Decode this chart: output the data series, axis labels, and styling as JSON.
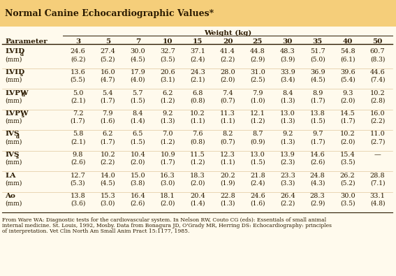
{
  "title": "Normal Canine Echocardiographic Values*",
  "title_bg": "#F5CE7A",
  "table_bg": "#FFFAED",
  "weights": [
    "3",
    "5",
    "7",
    "10",
    "15",
    "20",
    "25",
    "30",
    "35",
    "40",
    "50"
  ],
  "weight_label": "Weight (kg)",
  "parameters": [
    {
      "name": "LVID",
      "subscript": "d",
      "unit": "(mm)",
      "values": [
        "24.6",
        "27.4",
        "30.0",
        "32.7",
        "37.1",
        "41.4",
        "44.8",
        "48.3",
        "51.7",
        "54.8",
        "60.7"
      ],
      "sd": [
        "(6.2)",
        "(5.2)",
        "(4.5)",
        "(3.5)",
        "(2.4)",
        "(2.2)",
        "(2.9)",
        "(3.9)",
        "(5.0)",
        "(6.1)",
        "(8.3)"
      ]
    },
    {
      "name": "LVID",
      "subscript": "s",
      "unit": "(mm)",
      "values": [
        "13.6",
        "16.0",
        "17.9",
        "20.6",
        "24.3",
        "28.0",
        "31.0",
        "33.9",
        "36.9",
        "39.6",
        "44.6"
      ],
      "sd": [
        "(5.5)",
        "(4.7)",
        "(4.0)",
        "(3.1)",
        "(2.1)",
        "(2.0)",
        "(2.5)",
        "(3.4)",
        "(4.5)",
        "(5.4)",
        "(7.4)"
      ]
    },
    {
      "name": "LVPW",
      "subscript": "d",
      "unit": "(mm)",
      "values": [
        "5.0",
        "5.4",
        "5.7",
        "6.2",
        "6.8",
        "7.4",
        "7.9",
        "8.4",
        "8.9",
        "9.3",
        "10.2"
      ],
      "sd": [
        "(2.1)",
        "(1.7)",
        "(1.5)",
        "(1.2)",
        "(0.8)",
        "(0.7)",
        "(1.0)",
        "(1.3)",
        "(1.7)",
        "(2.0)",
        "(2.8)"
      ]
    },
    {
      "name": "LVPW",
      "subscript": "s",
      "unit": "(mm)",
      "values": [
        "7.2",
        "7.9",
        "8.4",
        "9.2",
        "10.2",
        "11.3",
        "12.1",
        "13.0",
        "13.8",
        "14.5",
        "16.0"
      ],
      "sd": [
        "(1.7)",
        "(1.6)",
        "(1.4)",
        "(1.3)",
        "(1.1)",
        "(1.1)",
        "(1.2)",
        "(1.3)",
        "(1.5)",
        "(1.7)",
        "(2.2)"
      ]
    },
    {
      "name": "IVS",
      "subscript": "d",
      "unit": "(mm)",
      "values": [
        "5.8",
        "6.2",
        "6.5",
        "7.0",
        "7.6",
        "8.2",
        "8.7",
        "9.2",
        "9.7",
        "10.2",
        "11.0"
      ],
      "sd": [
        "(2.1)",
        "(1.7)",
        "(1.5)",
        "(1.2)",
        "(0.8)",
        "(0.7)",
        "(0.9)",
        "(1.3)",
        "(1.7)",
        "(2.0)",
        "(2.7)"
      ]
    },
    {
      "name": "IVS",
      "subscript": "s",
      "unit": "(mm)",
      "values": [
        "9.8",
        "10.2",
        "10.4",
        "10.9",
        "11.5",
        "12.3",
        "13.0",
        "13.9",
        "14.6",
        "15.4",
        "—"
      ],
      "sd": [
        "(2.6)",
        "(2.2)",
        "(2.0)",
        "(1.7)",
        "(1.2)",
        "(1.1)",
        "(1.5)",
        "(2.3)",
        "(2.6)",
        "(3.5)",
        ""
      ]
    },
    {
      "name": "LA",
      "subscript": "",
      "unit": "(mm)",
      "values": [
        "12.7",
        "14.0",
        "15.0",
        "16.3",
        "18.3",
        "20.2",
        "21.8",
        "23.3",
        "24.8",
        "26.2",
        "28.8"
      ],
      "sd": [
        "(5.3)",
        "(4.5)",
        "(3.8)",
        "(3.0)",
        "(2.0)",
        "(1.9)",
        "(2.4)",
        "(3.3)",
        "(4.3)",
        "(5.2)",
        "(7.1)"
      ]
    },
    {
      "name": "Ao",
      "subscript": "",
      "unit": "(mm)",
      "values": [
        "13.8",
        "15.3",
        "16.4",
        "18.1",
        "20.4",
        "22.8",
        "24.6",
        "26.4",
        "28.3",
        "30.0",
        "33.1"
      ],
      "sd": [
        "(3.6)",
        "(3.0)",
        "(2.6)",
        "(2.0)",
        "(1.4)",
        "(1.3)",
        "(1.6)",
        "(2.2)",
        "(2.9)",
        "(3.5)",
        "(4.8)"
      ]
    }
  ],
  "footnote": "From Ware WA: Diagnostic tests for the cardiovascular system. In Nelson RW, Couto CG (eds): Essentials of small animal internal medicine. St. Louis, 1992, Mosby. Data from Bonagura JD, O'Grady MR, Herring DS: Echocardiography: principles of interpretation. Vet Clin North Am Small Anim Pract 15:1177, 1985.",
  "text_color": "#2A1A00",
  "title_fontsize": 9.0,
  "header_fontsize": 7.5,
  "data_fontsize": 7.0,
  "footnote_fontsize": 5.5
}
